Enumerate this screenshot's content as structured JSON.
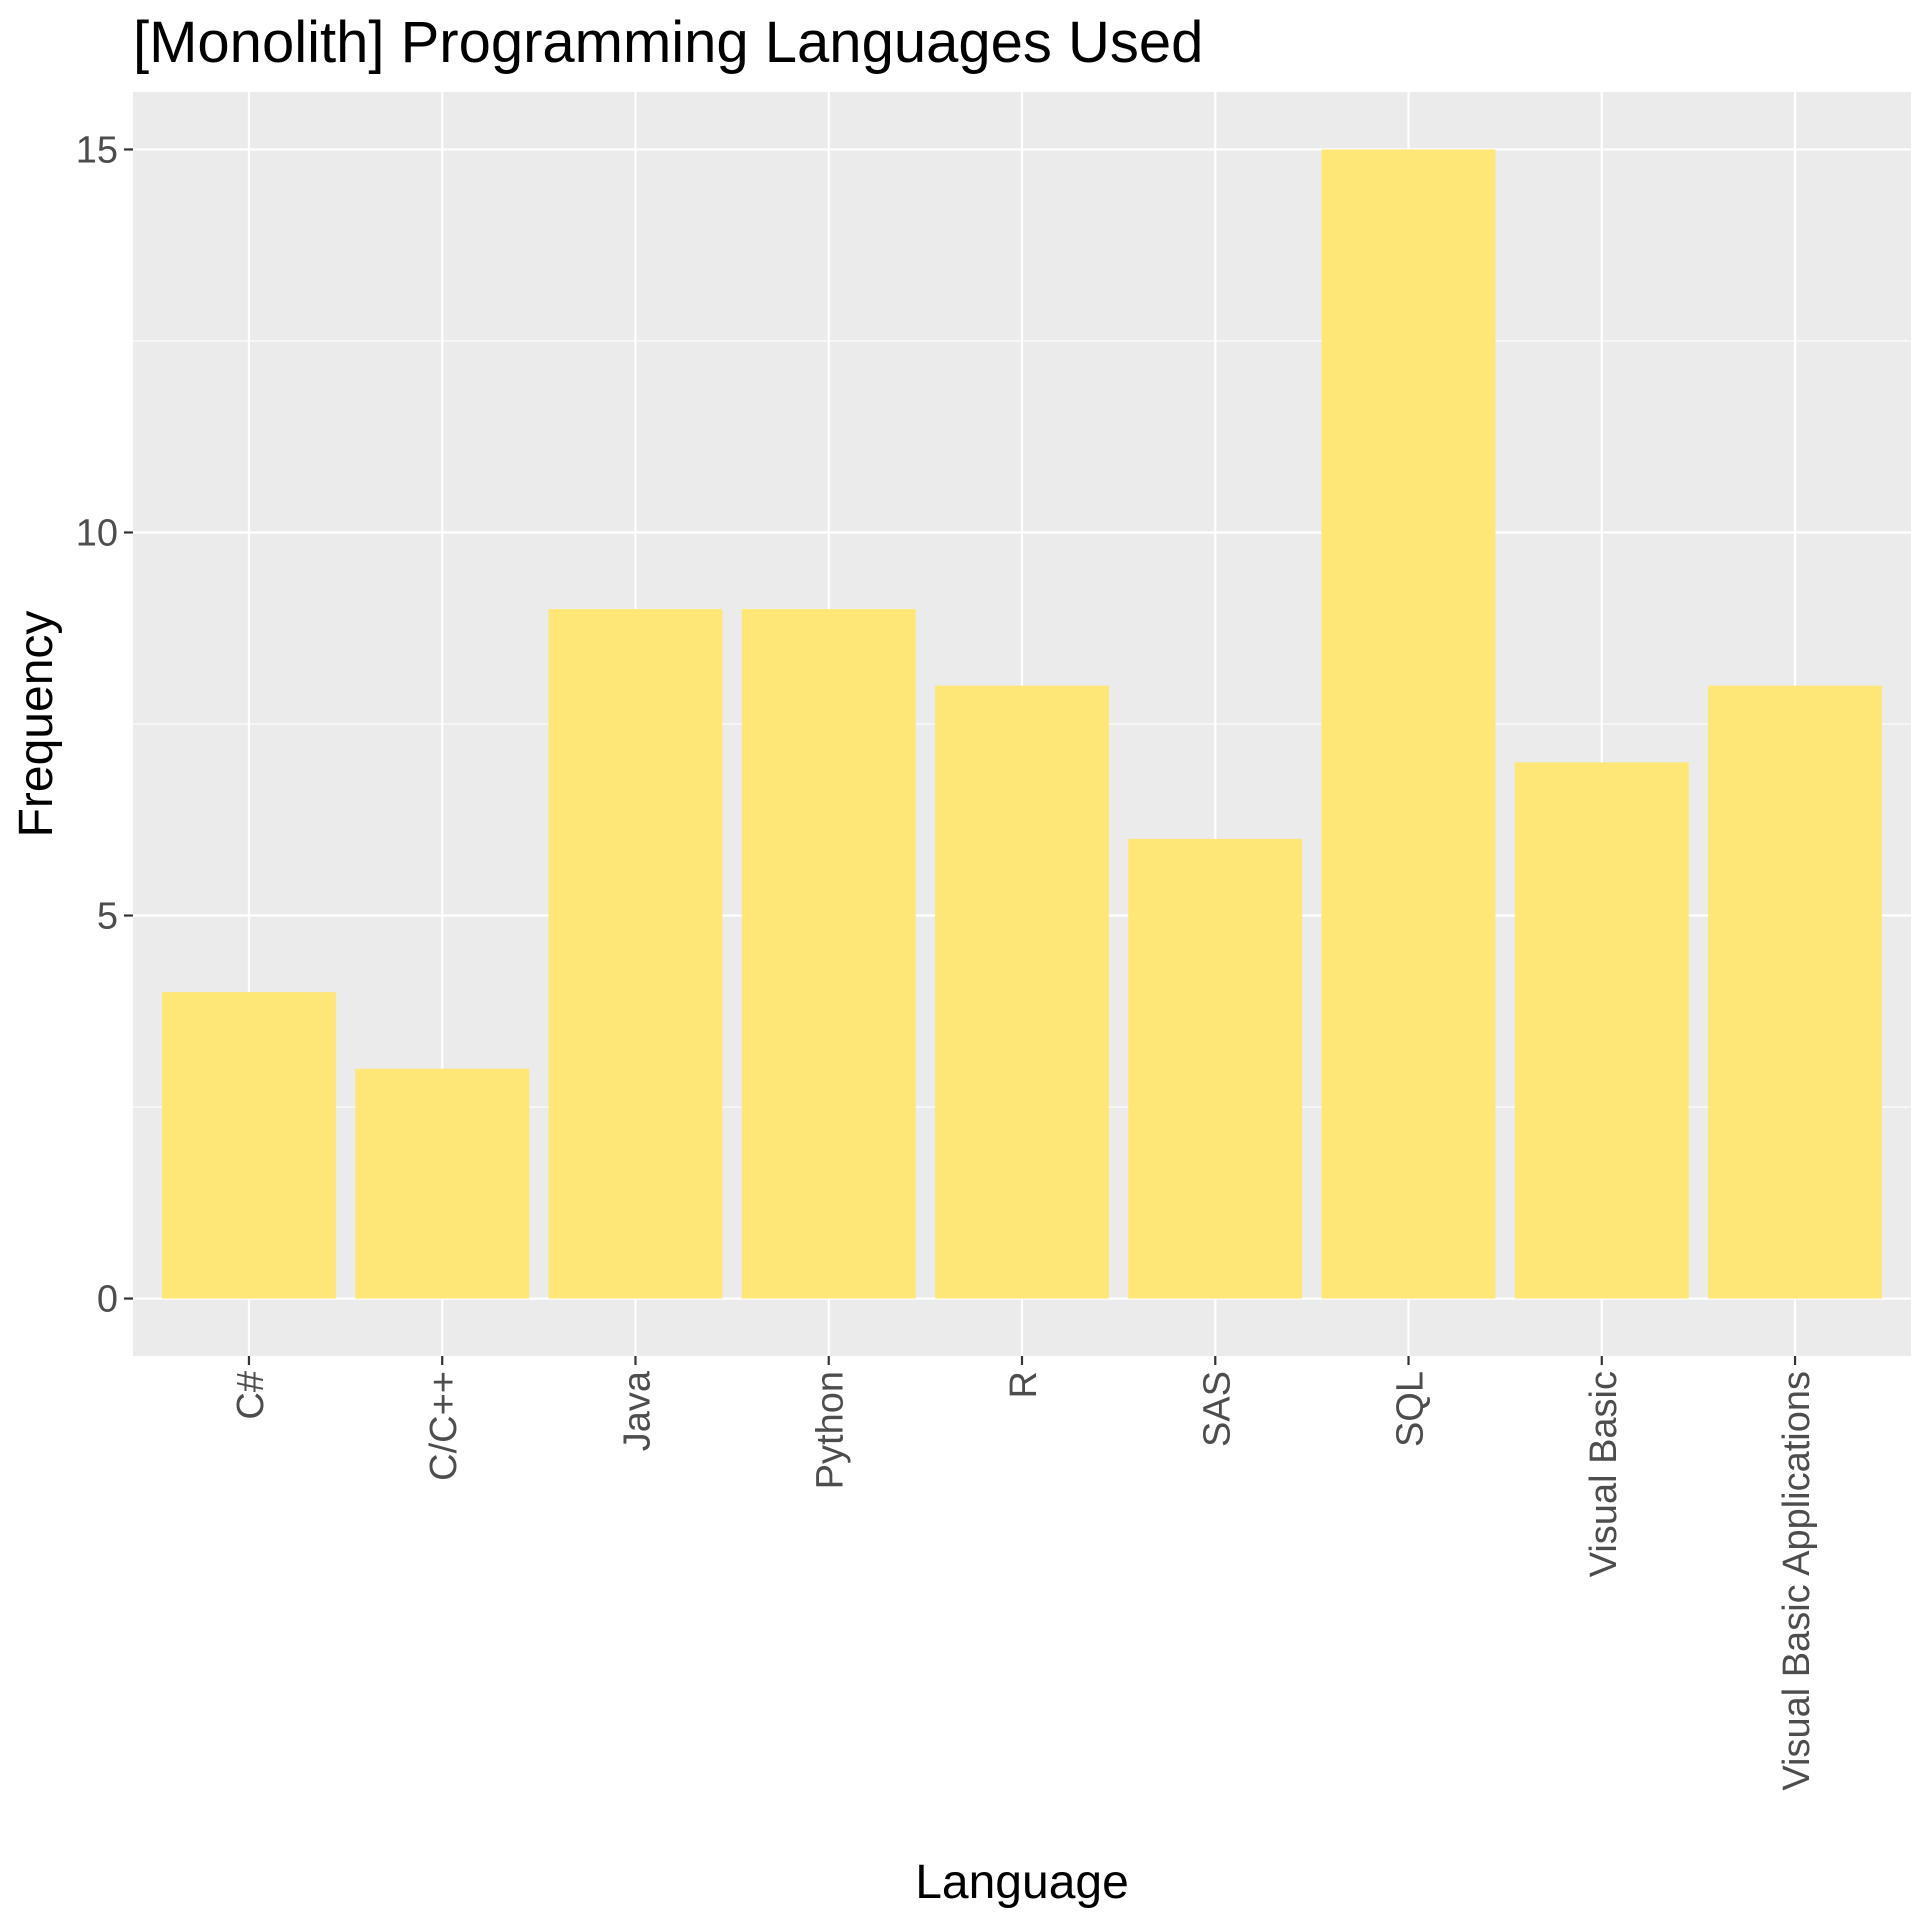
{
  "chart_data": {
    "type": "bar",
    "title": "[Monolith] Programming Languages Used",
    "xlabel": "Language",
    "ylabel": "Frequency",
    "categories": [
      "C#",
      "C/C++",
      "Java",
      "Python",
      "R",
      "SAS",
      "SQL",
      "Visual Basic",
      "Visual Basic Applications"
    ],
    "values": [
      4,
      3,
      9,
      9,
      8,
      6,
      15,
      7,
      8
    ],
    "ylim": [
      -0.75,
      15.75
    ],
    "yticks": [
      0,
      5,
      10,
      15
    ],
    "ytick_labels": [
      "0",
      "5",
      "10",
      "15"
    ],
    "grid": true,
    "legend": "none",
    "colors": {
      "bar": "#FFE777",
      "panel_background": "#EBEBEB",
      "grid_line": "#FFFFFF",
      "tick_mark": "#333333",
      "tick_label": "#4D4D4D",
      "text": "#000000"
    }
  }
}
